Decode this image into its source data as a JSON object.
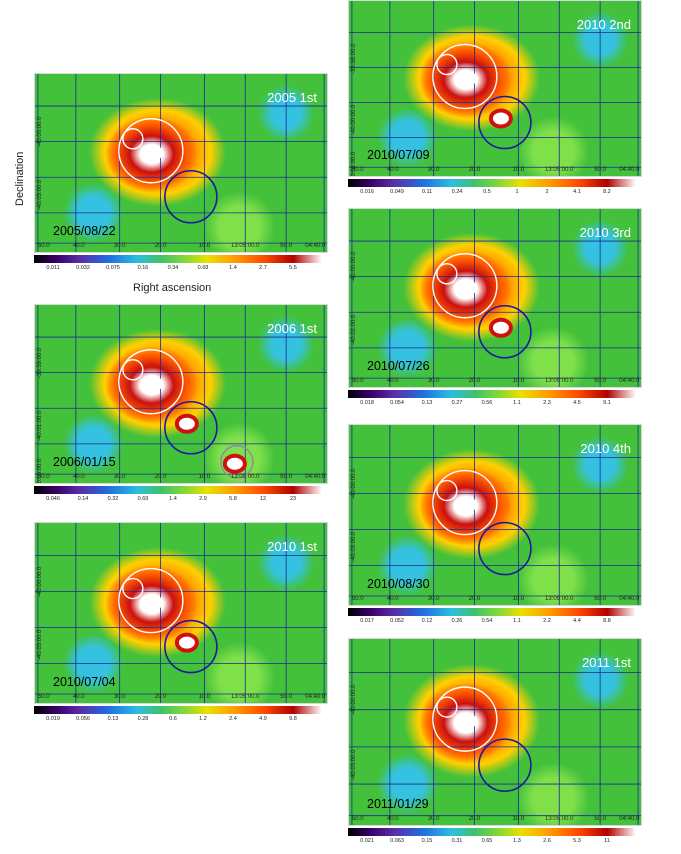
{
  "axes": {
    "ylabel": "Declination",
    "xlabel": "Right ascension"
  },
  "x_ticks": [
    "50.0",
    "40.0",
    "30.0",
    "20.0",
    "10.0",
    "13:05:00.0",
    "50.0",
    "04:40.0"
  ],
  "panels": [
    {
      "id": "p2005a",
      "title": "2005 1st",
      "date": "2005/08/22",
      "y_ticks": [
        "-40:00:00.0",
        "-40:03:00.0"
      ],
      "colorbar": [
        "0.011",
        "0.032",
        "0.075",
        "0.16",
        "0.34",
        "0.68",
        "1.4",
        "2.7",
        "5.5"
      ]
    },
    {
      "id": "p2006a",
      "title": "2006 1st",
      "date": "2006/01/15",
      "y_ticks": [
        "-39:59:00.0",
        "-40:01:00.0",
        "-40:05:00.0"
      ],
      "colorbar": [
        "0.046",
        "0.14",
        "0.32",
        "0.69",
        "1.4",
        "2.9",
        "5.8",
        "12",
        "23"
      ]
    },
    {
      "id": "p2010a",
      "title": "2010 1st",
      "date": "2010/07/04",
      "y_ticks": [
        "-40:00:00.0",
        "-40:03:00.0"
      ],
      "colorbar": [
        "0.019",
        "0.056",
        "0.13",
        "0.28",
        "0.6",
        "1.2",
        "2.4",
        "4.9",
        "9.8"
      ]
    },
    {
      "id": "p2010b",
      "title": "2010 2nd",
      "date": "2010/07/09",
      "y_ticks": [
        "-39:58:00.0",
        "-40:00:00.0",
        "-40:02:00.0"
      ],
      "colorbar": [
        "0.016",
        "0.049",
        "0.11",
        "0.24",
        "0.5",
        "1",
        "2",
        "4.1",
        "8.2"
      ]
    },
    {
      "id": "p2010c",
      "title": "2010 3rd",
      "date": "2010/07/26",
      "y_ticks": [
        "-40:00:00.0",
        "-40:02:00.0"
      ],
      "colorbar": [
        "0.018",
        "0.054",
        "0.13",
        "0.27",
        "0.56",
        "1.1",
        "2.3",
        "4.5",
        "9.1"
      ]
    },
    {
      "id": "p2010d",
      "title": "2010 4th",
      "date": "2010/08/30",
      "y_ticks": [
        "-40:00:00.0",
        "-40:03:00.0"
      ],
      "colorbar": [
        "0.017",
        "0.052",
        "0.12",
        "0.26",
        "0.54",
        "1.1",
        "2.2",
        "4.4",
        "8.8"
      ]
    },
    {
      "id": "p2011a",
      "title": "2011 1st",
      "date": "2011/01/29",
      "y_ticks": [
        "-40:00:00.0",
        "-40:03:00.0"
      ],
      "colorbar": [
        "0.021",
        "0.063",
        "0.15",
        "0.31",
        "0.65",
        "1.3",
        "2.6",
        "5.3",
        "11"
      ]
    }
  ]
}
